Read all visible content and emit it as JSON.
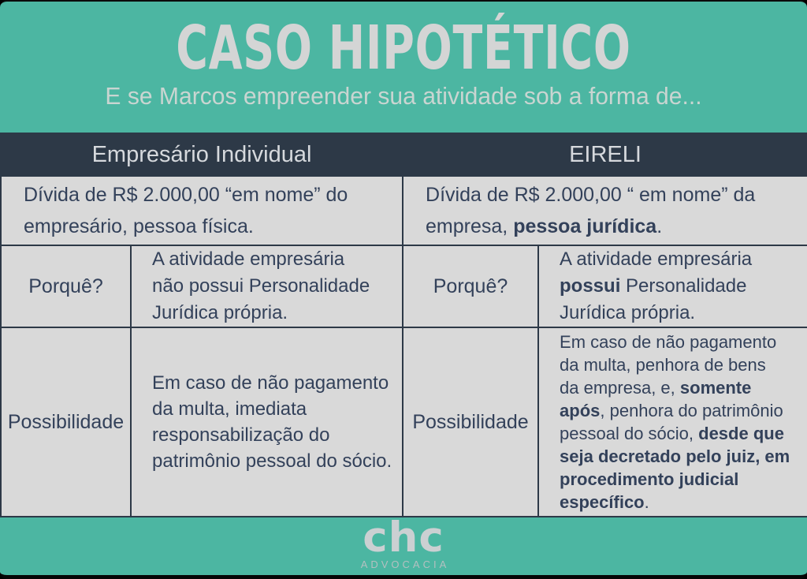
{
  "header": {
    "title": "CASO HIPOTÉTICO",
    "subtitle": "E se Marcos empreender sua atividade sob a forma de..."
  },
  "table": {
    "left_header": "Empresário Individual",
    "right_header": "EIRELI",
    "debt": {
      "left": [
        {
          "text": "Dívida de R$ 2.000,00 “em nome” do\nempresário, pessoa física.",
          "bold": false
        }
      ],
      "right": [
        {
          "text": "Dívida de R$ 2.000,00 “ em nome” da\nempresa, ",
          "bold": false
        },
        {
          "text": "pessoa jurídica",
          "bold": true
        },
        {
          "text": ".",
          "bold": false
        }
      ]
    },
    "why": {
      "label": "Porquê?",
      "left": [
        {
          "text": "A atividade empresária\nnão possui Personalidade\nJurídica própria.",
          "bold": false
        }
      ],
      "right": [
        {
          "text": "A atividade empresária\n",
          "bold": false
        },
        {
          "text": "possui",
          "bold": true
        },
        {
          "text": " Personalidade\nJurídica própria.",
          "bold": false
        }
      ]
    },
    "possibility": {
      "label": "Possibilidade",
      "left": [
        {
          "text": "Em caso de não pagamento\nda multa, imediata\nresponsabilização do\npatrimônio pessoal do sócio.",
          "bold": false
        }
      ],
      "right": [
        {
          "text": "Em caso de não pagamento\nda multa, penhora de bens\nda empresa, e, ",
          "bold": false
        },
        {
          "text": "somente\napós",
          "bold": true
        },
        {
          "text": ", penhora do patrimônio\npessoal do sócio, ",
          "bold": false
        },
        {
          "text": "desde que\nseja decretado pelo juiz, em\nprocedimento judicial\nespecífico",
          "bold": true
        },
        {
          "text": ".",
          "bold": false
        }
      ]
    }
  },
  "footer": {
    "logo": "chc",
    "logo_subtitle": "ADVOCACIA"
  },
  "colors": {
    "background_teal": "#4cb6a2",
    "header_navy": "#2d3947",
    "cell_gray": "#d9d9d9",
    "text_navy": "#33415a",
    "title_gray": "#d4d5d5"
  }
}
